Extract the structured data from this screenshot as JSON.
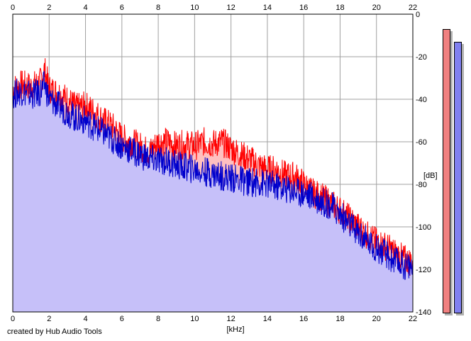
{
  "chart_data": {
    "type": "area",
    "xlabel": "[kHz]",
    "ylabel": "[dB]",
    "xlim": [
      0,
      22
    ],
    "ylim": [
      -140,
      0
    ],
    "x_ticks": [
      "0",
      "2",
      "4",
      "6",
      "8",
      "10",
      "12",
      "14",
      "16",
      "18",
      "20",
      "22"
    ],
    "y_ticks": [
      "0",
      "-20",
      "-40",
      "-60",
      "-80",
      "-100",
      "-120",
      "-140"
    ],
    "grid": true,
    "series": [
      {
        "channel": "left",
        "color": "#ff0000",
        "fill": "#ffc0c0",
        "x": [
          0,
          0.5,
          1,
          1.5,
          1.75,
          2,
          2.5,
          3,
          3.5,
          4,
          4.5,
          5,
          5.5,
          6,
          6.5,
          7,
          7.5,
          8,
          8.5,
          9,
          9.5,
          10,
          10.5,
          11,
          11.5,
          12,
          12.5,
          13,
          13.5,
          14,
          14.5,
          15,
          15.5,
          16,
          16.5,
          17,
          17.5,
          18,
          18.5,
          19,
          19.5,
          20,
          20.5,
          21,
          21.5,
          22
        ],
        "values": [
          -35,
          -33,
          -34,
          -32,
          -26,
          -35,
          -37,
          -40,
          -44,
          -43,
          -46,
          -50,
          -53,
          -58,
          -60,
          -62,
          -65,
          -60,
          -60,
          -62,
          -61,
          -62,
          -60,
          -61,
          -60,
          -63,
          -66,
          -68,
          -71,
          -73,
          -73,
          -76,
          -76,
          -80,
          -84,
          -86,
          -89,
          -92,
          -96,
          -100,
          -104,
          -107,
          -109,
          -112,
          -115,
          -117
        ]
      },
      {
        "channel": "right",
        "color": "#0000cc",
        "fill": "#c0c0ff",
        "x": [
          0,
          0.5,
          1,
          1.5,
          1.75,
          2,
          2.5,
          3,
          3.5,
          4,
          4.5,
          5,
          5.5,
          6,
          6.5,
          7,
          7.5,
          8,
          8.5,
          9,
          9.5,
          10,
          10.5,
          11,
          11.5,
          12,
          12.5,
          13,
          13.5,
          14,
          14.5,
          15,
          15.5,
          16,
          16.5,
          17,
          17.5,
          18,
          18.5,
          19,
          19.5,
          20,
          20.5,
          21,
          21.5,
          22
        ],
        "values": [
          -38,
          -36,
          -38,
          -37,
          -33,
          -40,
          -43,
          -46,
          -49,
          -50,
          -53,
          -56,
          -59,
          -62,
          -64,
          -66,
          -68,
          -69,
          -69,
          -71,
          -72,
          -73,
          -74,
          -75,
          -76,
          -77,
          -78,
          -79,
          -79,
          -80,
          -81,
          -82,
          -83,
          -84,
          -86,
          -88,
          -90,
          -94,
          -99,
          -103,
          -107,
          -110,
          -113,
          -116,
          -118,
          -119
        ]
      }
    ]
  },
  "meters": [
    {
      "channel": "left",
      "level_db": -7,
      "color": "#f08080"
    },
    {
      "channel": "right",
      "level_db": -13,
      "color": "#8080f0"
    }
  ],
  "credit": "created by Hub Audio Tools"
}
